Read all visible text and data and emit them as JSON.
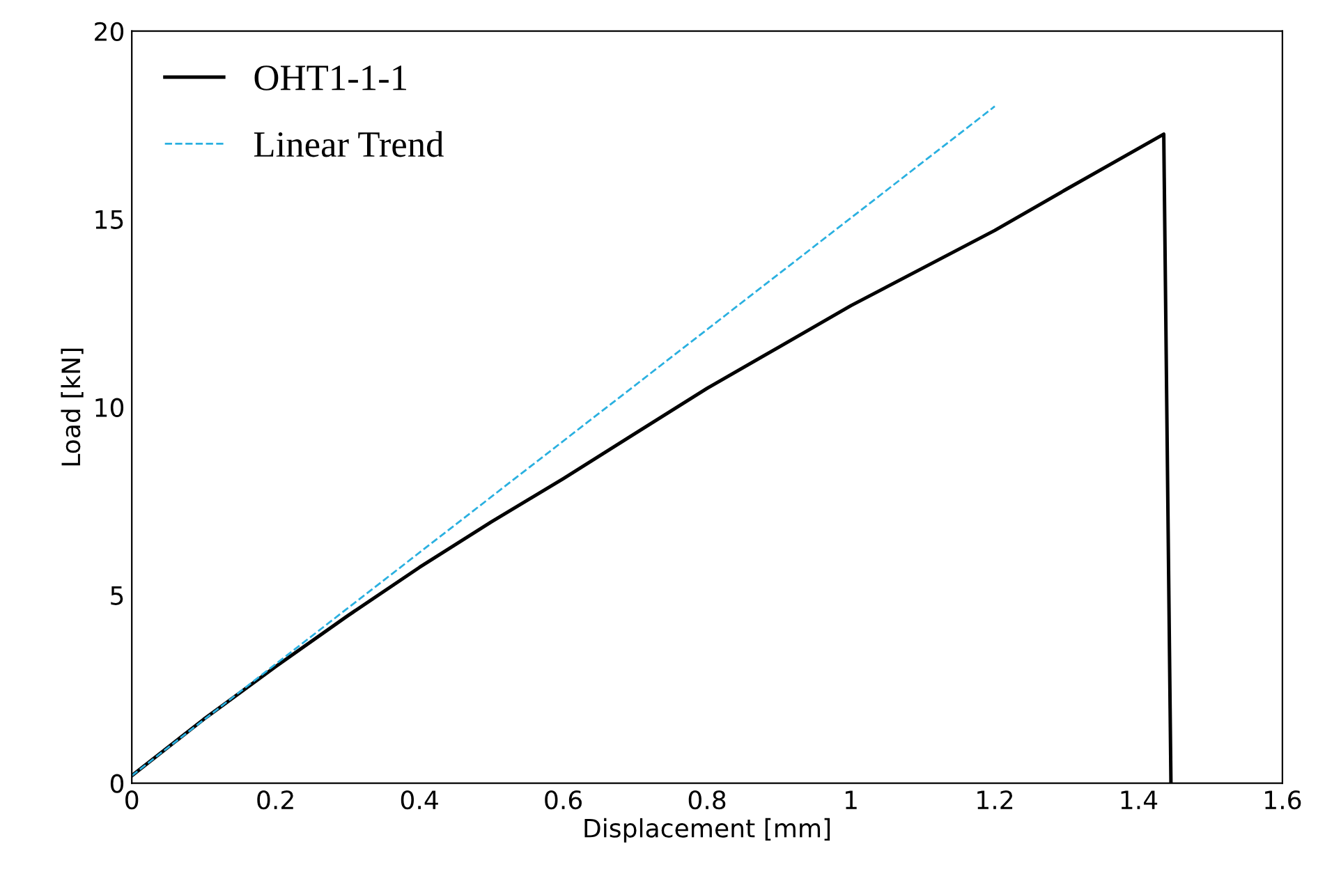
{
  "chart_data": {
    "type": "line",
    "xlabel": "Displacement [mm]",
    "ylabel": "Load [kN]",
    "xlim": [
      0,
      1.6
    ],
    "ylim": [
      0,
      20
    ],
    "xticks": [
      0,
      0.2,
      0.4,
      0.6,
      0.8,
      1,
      1.2,
      1.4,
      1.6
    ],
    "yticks": [
      0,
      5,
      10,
      15,
      20
    ],
    "grid": false,
    "legend": "top left",
    "marker": "none",
    "series": [
      {
        "name": "OHT1-1-1",
        "color": "#000000",
        "line_style": "solid",
        "x": [
          0,
          0.1,
          0.2,
          0.3,
          0.4,
          0.5,
          0.6,
          0.7,
          0.8,
          0.9,
          1.0,
          1.1,
          1.2,
          1.3,
          1.435,
          1.445
        ],
        "values": [
          0.2,
          1.7,
          3.1,
          4.45,
          5.74,
          6.95,
          8.1,
          9.3,
          10.5,
          11.6,
          12.7,
          13.7,
          14.7,
          15.8,
          17.26,
          0
        ]
      },
      {
        "name": "Linear Trend",
        "color": "#2ab0e0",
        "line_style": "dashed",
        "x": [
          0,
          1.2
        ],
        "values": [
          0.2,
          18.0
        ]
      }
    ]
  }
}
